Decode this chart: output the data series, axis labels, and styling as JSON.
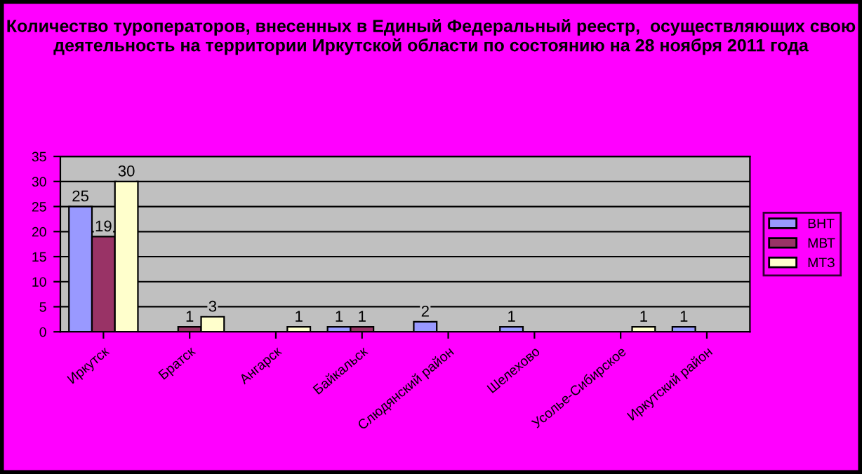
{
  "chart_data": {
    "type": "bar",
    "title": "Количество туроператоров, внесенных в Единый Федеральный реестр,  осуществляющих свою деятельность на территории Иркутской области по состоянию на 28 ноября 2011 года",
    "categories": [
      "Иркутск",
      "Братск",
      "Ангарск",
      "Байкальск",
      "Слюдянский район",
      "Шелехово",
      "Усолье-Сибирское",
      "Иркутский район"
    ],
    "series": [
      {
        "name": "ВНТ",
        "color": "#9999ff",
        "values": [
          25,
          null,
          null,
          1,
          2,
          1,
          null,
          1
        ]
      },
      {
        "name": "МВТ",
        "color": "#993366",
        "values": [
          19,
          1,
          null,
          1,
          null,
          null,
          null,
          null
        ]
      },
      {
        "name": "МТЗ",
        "color": "#ffffcc",
        "values": [
          30,
          3,
          1,
          null,
          null,
          null,
          1,
          null
        ]
      }
    ],
    "ylim": [
      0,
      35
    ],
    "yticks": [
      0,
      5,
      10,
      15,
      20,
      25,
      30,
      35
    ],
    "grid": "y",
    "legend": "right",
    "data_labels": true
  }
}
